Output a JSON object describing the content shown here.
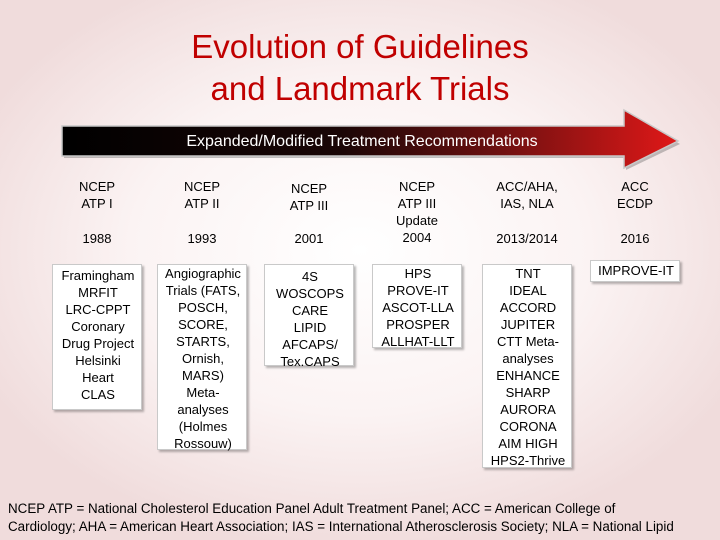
{
  "title": {
    "line1": "Evolution of Guidelines",
    "line2": "and Landmark Trials"
  },
  "arrow": {
    "label": "Expanded/Modified Treatment Recommendations"
  },
  "columns": [
    {
      "header": [
        "NCEP",
        "ATP I"
      ],
      "year": "1988",
      "trials": [
        "Framingham",
        "MRFIT",
        "LRC-CPPT",
        "Coronary",
        "Drug Project",
        "Helsinki",
        "Heart",
        "CLAS"
      ]
    },
    {
      "header": [
        "NCEP",
        "ATP II"
      ],
      "year": "1993",
      "trials": [
        "Angiographic",
        "Trials (FATS,",
        "POSCH,",
        "SCORE,",
        "STARTS,",
        "Ornish,",
        "MARS)",
        "Meta-",
        "analyses",
        "(Holmes",
        "Rossouw)"
      ]
    },
    {
      "header": [
        "NCEP",
        "ATP III"
      ],
      "year": "2001",
      "trials": [
        "4S",
        "WOSCOPS",
        "CARE",
        "LIPID",
        "AFCAPS/",
        "Tex.CAPS"
      ]
    },
    {
      "header": [
        "NCEP",
        "ATP III",
        "Update",
        "2004"
      ],
      "year": "",
      "trials": [
        "HPS",
        "PROVE-IT",
        "ASCOT-LLA",
        "PROSPER",
        "ALLHAT-LLT"
      ]
    },
    {
      "header": [
        "ACC/AHA,",
        "IAS, NLA"
      ],
      "year": "2013/2014",
      "trials": [
        "TNT",
        "IDEAL",
        "ACCORD",
        "JUPITER",
        "CTT Meta-",
        "analyses",
        "ENHANCE",
        "SHARP",
        "AURORA",
        "CORONA",
        "AIM HIGH",
        "HPS2-Thrive"
      ]
    },
    {
      "header": [
        "ACC",
        "ECDP"
      ],
      "year": "2016",
      "trials": [
        "IMPROVE-IT"
      ]
    }
  ],
  "footnote": {
    "line1": "NCEP ATP = National Cholesterol Education Panel Adult Treatment Panel; ACC = American College of",
    "line2": "Cardiology; AHA = American Heart Association; IAS = International Atherosclerosis Society; NLA = National Lipid"
  }
}
